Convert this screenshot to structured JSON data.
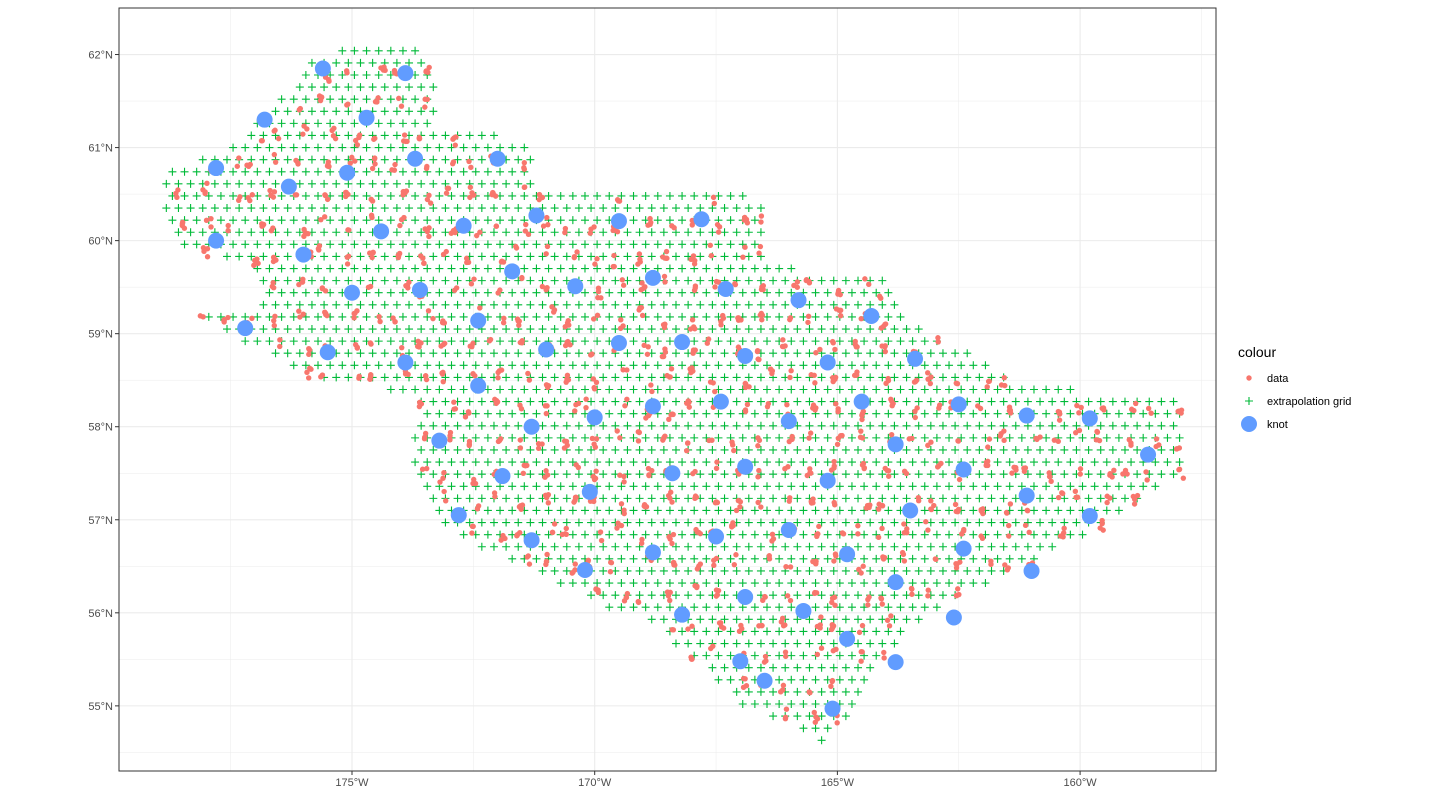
{
  "chart_data": {
    "type": "scatter",
    "title": "",
    "xlabel": "",
    "ylabel": "",
    "xlim": [
      -179.8,
      -157.2
    ],
    "ylim": [
      54.3,
      62.5
    ],
    "x_ticks": [
      {
        "value": -175,
        "label": "175°W"
      },
      {
        "value": -170,
        "label": "170°W"
      },
      {
        "value": -165,
        "label": "165°W"
      },
      {
        "value": -160,
        "label": "160°W"
      }
    ],
    "y_ticks": [
      {
        "value": 55,
        "label": "55°N"
      },
      {
        "value": 56,
        "label": "56°N"
      },
      {
        "value": 57,
        "label": "57°N"
      },
      {
        "value": 58,
        "label": "58°N"
      },
      {
        "value": 59,
        "label": "59°N"
      },
      {
        "value": 60,
        "label": "60°N"
      },
      {
        "value": 61,
        "label": "61°N"
      },
      {
        "value": 62,
        "label": "62°N"
      }
    ],
    "grid": true,
    "legend": {
      "title": "colour",
      "position": "right",
      "items": [
        {
          "label": "data",
          "shape": "dot",
          "color": "#F8766D"
        },
        {
          "label": "extrapolation grid",
          "shape": "plus",
          "color": "#00BA38"
        },
        {
          "label": "knot",
          "shape": "large-dot",
          "color": "#619CFF"
        }
      ]
    },
    "colors": {
      "data": "#F8766D",
      "extrapolation_grid": "#00BA38",
      "knot": "#619CFF"
    },
    "region_outline": [
      [
        -175.0,
        62.1
      ],
      [
        -173.5,
        62.1
      ],
      [
        -173.2,
        61.6
      ],
      [
        -173.3,
        61.2
      ],
      [
        -171.2,
        61.1
      ],
      [
        -171.2,
        60.5
      ],
      [
        -167.0,
        60.5
      ],
      [
        -166.5,
        60.4
      ],
      [
        -166.5,
        59.8
      ],
      [
        -165.0,
        59.6
      ],
      [
        -164.0,
        59.6
      ],
      [
        -163.5,
        59.1
      ],
      [
        -162.2,
        58.8
      ],
      [
        -161.5,
        58.5
      ],
      [
        -160.0,
        58.4
      ],
      [
        -158.3,
        58.4
      ],
      [
        -157.9,
        58.2
      ],
      [
        -157.9,
        57.5
      ],
      [
        -158.5,
        57.3
      ],
      [
        -159.3,
        57.0
      ],
      [
        -160.5,
        56.7
      ],
      [
        -161.5,
        56.4
      ],
      [
        -162.5,
        56.2
      ],
      [
        -163.5,
        55.8
      ],
      [
        -164.3,
        55.4
      ],
      [
        -164.8,
        54.9
      ],
      [
        -165.3,
        54.5
      ],
      [
        -165.8,
        54.8
      ],
      [
        -167.0,
        55.0
      ],
      [
        -167.8,
        55.4
      ],
      [
        -168.8,
        55.9
      ],
      [
        -170.0,
        56.1
      ],
      [
        -171.3,
        56.5
      ],
      [
        -172.3,
        56.7
      ],
      [
        -173.2,
        57.0
      ],
      [
        -173.5,
        57.4
      ],
      [
        -173.8,
        57.7
      ],
      [
        -173.6,
        58.2
      ],
      [
        -174.5,
        58.5
      ],
      [
        -175.3,
        58.4
      ],
      [
        -176.8,
        58.8
      ],
      [
        -177.5,
        59.0
      ],
      [
        -178.2,
        59.2
      ],
      [
        -176.8,
        59.2
      ],
      [
        -177.0,
        59.7
      ],
      [
        -178.8,
        60.0
      ],
      [
        -178.9,
        60.7
      ],
      [
        -177.5,
        61.0
      ],
      [
        -176.5,
        61.5
      ],
      [
        -176.0,
        61.9
      ]
    ],
    "knots": [
      {
        "x": -175.6,
        "y": 61.85
      },
      {
        "x": -173.9,
        "y": 61.8
      },
      {
        "x": -176.8,
        "y": 61.3
      },
      {
        "x": -174.7,
        "y": 61.32
      },
      {
        "x": -173.7,
        "y": 60.88
      },
      {
        "x": -172.0,
        "y": 60.88
      },
      {
        "x": -177.8,
        "y": 60.78
      },
      {
        "x": -175.1,
        "y": 60.73
      },
      {
        "x": -176.3,
        "y": 60.58
      },
      {
        "x": -171.2,
        "y": 60.27
      },
      {
        "x": -169.5,
        "y": 60.21
      },
      {
        "x": -167.8,
        "y": 60.23
      },
      {
        "x": -172.7,
        "y": 60.16
      },
      {
        "x": -174.4,
        "y": 60.1
      },
      {
        "x": -177.8,
        "y": 60.0
      },
      {
        "x": -176.0,
        "y": 59.85
      },
      {
        "x": -171.7,
        "y": 59.67
      },
      {
        "x": -168.8,
        "y": 59.6
      },
      {
        "x": -170.4,
        "y": 59.51
      },
      {
        "x": -167.3,
        "y": 59.48
      },
      {
        "x": -173.6,
        "y": 59.47
      },
      {
        "x": -175.0,
        "y": 59.44
      },
      {
        "x": -165.8,
        "y": 59.36
      },
      {
        "x": -164.3,
        "y": 59.19
      },
      {
        "x": -172.4,
        "y": 59.14
      },
      {
        "x": -177.2,
        "y": 59.06
      },
      {
        "x": -169.5,
        "y": 58.9
      },
      {
        "x": -168.2,
        "y": 58.91
      },
      {
        "x": -171.0,
        "y": 58.83
      },
      {
        "x": -175.5,
        "y": 58.8
      },
      {
        "x": -166.9,
        "y": 58.76
      },
      {
        "x": -163.4,
        "y": 58.73
      },
      {
        "x": -173.9,
        "y": 58.69
      },
      {
        "x": -165.2,
        "y": 58.69
      },
      {
        "x": -172.4,
        "y": 58.44
      },
      {
        "x": -167.4,
        "y": 58.27
      },
      {
        "x": -164.5,
        "y": 58.27
      },
      {
        "x": -162.5,
        "y": 58.24
      },
      {
        "x": -168.8,
        "y": 58.22
      },
      {
        "x": -161.1,
        "y": 58.12
      },
      {
        "x": -159.8,
        "y": 58.09
      },
      {
        "x": -170.0,
        "y": 58.1
      },
      {
        "x": -166.0,
        "y": 58.06
      },
      {
        "x": -171.3,
        "y": 58.0
      },
      {
        "x": -173.2,
        "y": 57.85
      },
      {
        "x": -163.8,
        "y": 57.81
      },
      {
        "x": -158.6,
        "y": 57.7
      },
      {
        "x": -166.9,
        "y": 57.57
      },
      {
        "x": -162.4,
        "y": 57.54
      },
      {
        "x": -168.4,
        "y": 57.5
      },
      {
        "x": -171.9,
        "y": 57.47
      },
      {
        "x": -165.2,
        "y": 57.42
      },
      {
        "x": -170.1,
        "y": 57.3
      },
      {
        "x": -161.1,
        "y": 57.26
      },
      {
        "x": -163.5,
        "y": 57.1
      },
      {
        "x": -159.8,
        "y": 57.04
      },
      {
        "x": -172.8,
        "y": 57.05
      },
      {
        "x": -166.0,
        "y": 56.89
      },
      {
        "x": -167.5,
        "y": 56.82
      },
      {
        "x": -171.3,
        "y": 56.78
      },
      {
        "x": -162.4,
        "y": 56.69
      },
      {
        "x": -168.8,
        "y": 56.65
      },
      {
        "x": -164.8,
        "y": 56.63
      },
      {
        "x": -170.2,
        "y": 56.46
      },
      {
        "x": -161.0,
        "y": 56.45
      },
      {
        "x": -163.8,
        "y": 56.33
      },
      {
        "x": -166.9,
        "y": 56.17
      },
      {
        "x": -165.7,
        "y": 56.02
      },
      {
        "x": -168.2,
        "y": 55.98
      },
      {
        "x": -162.6,
        "y": 55.95
      },
      {
        "x": -164.8,
        "y": 55.72
      },
      {
        "x": -167.0,
        "y": 55.48
      },
      {
        "x": -163.8,
        "y": 55.47
      },
      {
        "x": -166.5,
        "y": 55.27
      },
      {
        "x": -165.1,
        "y": 54.97
      }
    ]
  }
}
